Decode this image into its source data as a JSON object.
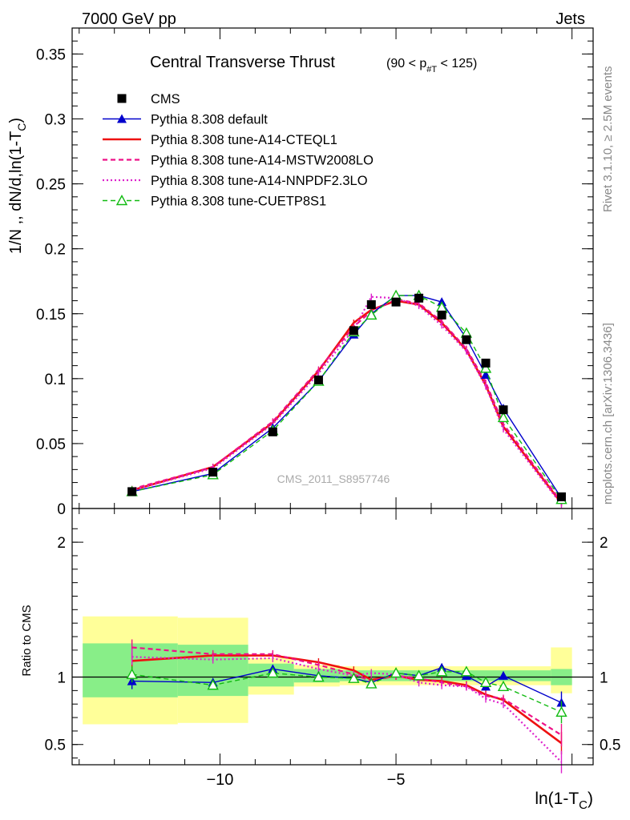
{
  "header": {
    "left": "7000 GeV pp",
    "right": "Jets",
    "title": "Central Transverse Thrust",
    "title_sub": "(90 < p",
    "title_sub_index": "#T",
    "title_sub_end": " < 125)"
  },
  "side_labels": {
    "rivet": "Rivet 3.1.10, ≥ 2.5M events",
    "mcplots": "mcplots.cern.ch [arXiv:1306.3436]"
  },
  "watermark": "CMS_2011_S8957746",
  "ylabel_top": "1/N ,, dN/d,ln(1-T",
  "ylabel_top_sub": "C",
  "ylabel_top_end": ")",
  "ylabel_bottom": "Ratio to CMS",
  "xlabel": "ln(1-T",
  "xlabel_sub": "C",
  "xlabel_end": ")",
  "colors": {
    "cms": "#000000",
    "default": "#0000cc",
    "cteql1": "#ee1111",
    "mstw": "#ee1188",
    "nnpdf": "#dd22cc",
    "cuetp": "#11bb11",
    "band_inner": "#88ee88",
    "band_outer": "#ffff99"
  },
  "chart_data": [
    {
      "type": "line",
      "panel": "main",
      "xlim": [
        -14.2,
        0.6
      ],
      "ylim": [
        0,
        0.37
      ],
      "yticks": [
        0,
        0.05,
        0.1,
        0.15,
        0.2,
        0.25,
        0.3,
        0.35
      ],
      "ytick_labels": [
        "0",
        "0.05",
        "0.1",
        "0.15",
        "0.2",
        "0.25",
        "0.3",
        "0.35"
      ],
      "legend_position": "top-left",
      "x": [
        -12.5,
        -10.2,
        -8.5,
        -7.2,
        -6.2,
        -5.7,
        -5.0,
        -4.35,
        -3.7,
        -3.0,
        -2.45,
        -1.95,
        -0.3
      ],
      "series": [
        {
          "name": "CMS",
          "marker": "square",
          "values": [
            0.013,
            0.028,
            0.059,
            0.099,
            0.137,
            0.157,
            0.159,
            0.162,
            0.149,
            0.13,
            0.112,
            0.076,
            0.009
          ]
        },
        {
          "name": "Pythia 8.308 default",
          "marker": "triangle",
          "values": [
            0.013,
            0.027,
            0.062,
            0.098,
            0.134,
            0.15,
            0.164,
            0.164,
            0.159,
            0.131,
            0.103,
            0.077,
            0.008
          ]
        },
        {
          "name": "Pythia 8.308 tune-A14-CTEQL1",
          "marker": "none",
          "values": [
            0.014,
            0.032,
            0.066,
            0.106,
            0.143,
            0.153,
            0.16,
            0.157,
            0.143,
            0.122,
            0.095,
            0.063,
            0.004
          ]
        },
        {
          "name": "Pythia 8.308 tune-A14-MSTW2008LO",
          "marker": "none",
          "values": [
            0.015,
            0.032,
            0.067,
            0.107,
            0.14,
            0.152,
            0.161,
            0.158,
            0.144,
            0.123,
            0.097,
            0.065,
            0.005
          ]
        },
        {
          "name": "Pythia 8.308 tune-A14-NNPDF2.3LO",
          "marker": "none",
          "values": [
            0.014,
            0.031,
            0.065,
            0.104,
            0.138,
            0.163,
            0.162,
            0.156,
            0.141,
            0.121,
            0.094,
            0.061,
            0.003
          ]
        },
        {
          "name": "Pythia 8.308 tune-CUETP8S1",
          "marker": "open-triangle",
          "values": [
            0.013,
            0.026,
            0.06,
            0.098,
            0.136,
            0.149,
            0.164,
            0.164,
            0.155,
            0.135,
            0.108,
            0.07,
            0.007
          ]
        }
      ]
    },
    {
      "type": "line",
      "panel": "ratio",
      "xlim": [
        -14.2,
        0.6
      ],
      "ylim": [
        0.35,
        2.25
      ],
      "yticks": [
        0.5,
        1,
        2
      ],
      "ytick_labels": [
        "0.5",
        "1",
        "2"
      ],
      "xticks": [
        -10,
        -5
      ],
      "xtick_labels": [
        "−10",
        "−5"
      ],
      "x": [
        -12.5,
        -10.2,
        -8.5,
        -7.2,
        -6.2,
        -5.7,
        -5.0,
        -4.35,
        -3.7,
        -3.0,
        -2.45,
        -1.95,
        -0.3
      ],
      "bands": [
        {
          "xmin": -13.9,
          "xmax": -11.2,
          "inner": [
            0.85,
            1.25
          ],
          "outer": [
            0.65,
            1.45
          ]
        },
        {
          "xmin": -11.2,
          "xmax": -9.2,
          "inner": [
            0.86,
            1.24
          ],
          "outer": [
            0.66,
            1.44
          ]
        },
        {
          "xmin": -9.2,
          "xmax": -7.9,
          "inner": [
            0.93,
            1.1
          ],
          "outer": [
            0.87,
            1.14
          ]
        },
        {
          "xmin": -7.9,
          "xmax": -6.6,
          "inner": [
            0.96,
            1.06
          ],
          "outer": [
            0.93,
            1.09
          ]
        },
        {
          "xmin": -6.6,
          "xmax": -0.6,
          "inner": [
            0.97,
            1.05
          ],
          "outer": [
            0.94,
            1.08
          ]
        },
        {
          "xmin": -0.6,
          "xmax": 0.0,
          "inner": [
            0.94,
            1.06
          ],
          "outer": [
            0.88,
            1.22
          ]
        }
      ],
      "series": [
        {
          "name": "Pythia 8.308 default",
          "values": [
            0.97,
            0.96,
            1.06,
            1.01,
            0.99,
            0.96,
            1.03,
            1.01,
            1.07,
            1.01,
            0.93,
            1.01,
            0.81
          ]
        },
        {
          "name": "Pythia 8.308 tune-A14-CTEQL1",
          "values": [
            1.12,
            1.16,
            1.16,
            1.11,
            1.05,
            0.98,
            1.01,
            0.98,
            0.97,
            0.94,
            0.87,
            0.83,
            0.51
          ]
        },
        {
          "name": "Pythia 8.308 tune-A14-MSTW2008LO",
          "values": [
            1.22,
            1.17,
            1.17,
            1.09,
            1.02,
            0.97,
            1.01,
            0.99,
            0.96,
            0.93,
            0.86,
            0.84,
            0.57
          ]
        },
        {
          "name": "Pythia 8.308 tune-A14-NNPDF2.3LO",
          "values": [
            1.15,
            1.13,
            1.14,
            1.06,
            1.01,
            1.03,
            1.02,
            0.96,
            0.94,
            0.93,
            0.84,
            0.8,
            0.37
          ]
        },
        {
          "name": "Pythia 8.308 tune-CUETP8S1",
          "values": [
            1.02,
            0.94,
            1.03,
            1.0,
            0.99,
            0.95,
            1.03,
            1.01,
            1.04,
            1.04,
            0.96,
            0.93,
            0.74
          ]
        }
      ]
    }
  ]
}
